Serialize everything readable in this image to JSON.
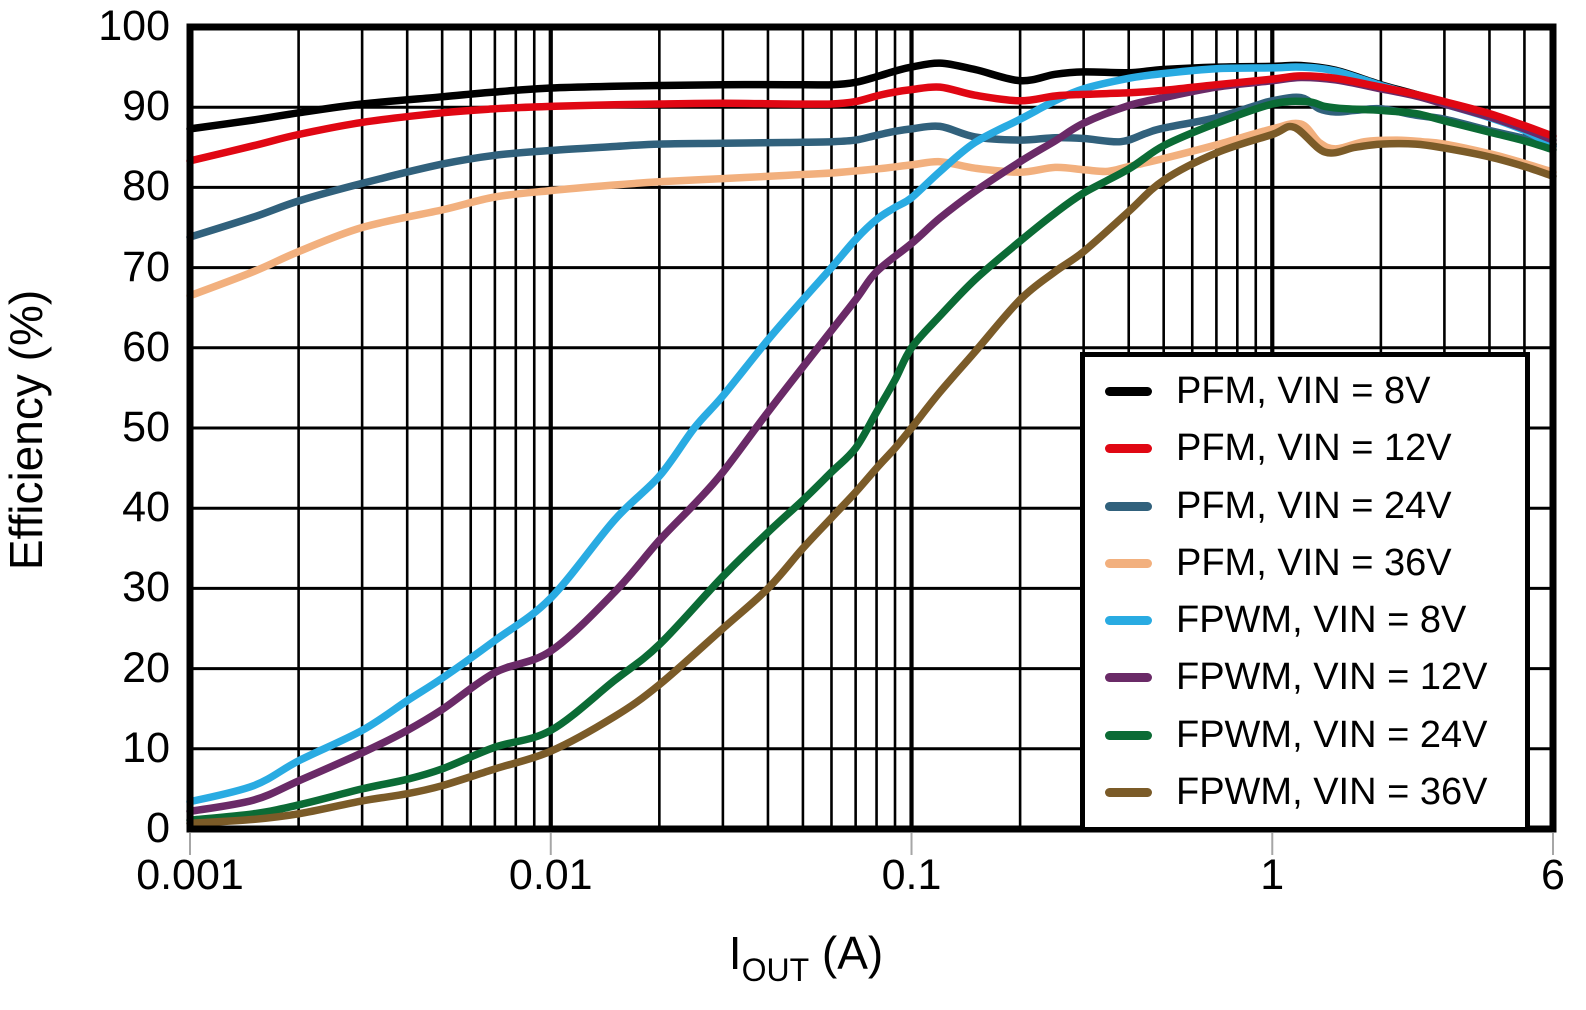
{
  "chart_data": {
    "type": "line",
    "title": "",
    "xlabel": {
      "base": "I",
      "sub": "OUT",
      "rest": " (A)"
    },
    "ylabel": "Efficiency (%)",
    "x_scale": "log",
    "xlim": [
      0.001,
      6
    ],
    "ylim": [
      0,
      100
    ],
    "grid": "on",
    "legend_position": "inside-bottom-right",
    "x_ticks": [
      {
        "value": 0.001,
        "label": "0.001"
      },
      {
        "value": 0.01,
        "label": "0.01"
      },
      {
        "value": 0.1,
        "label": "0.1"
      },
      {
        "value": 1,
        "label": "1"
      },
      {
        "value": 6,
        "label": "6"
      }
    ],
    "y_ticks": [
      {
        "value": 0,
        "label": "0"
      },
      {
        "value": 10,
        "label": "10"
      },
      {
        "value": 20,
        "label": "20"
      },
      {
        "value": 30,
        "label": "30"
      },
      {
        "value": 40,
        "label": "40"
      },
      {
        "value": 50,
        "label": "50"
      },
      {
        "value": 60,
        "label": "60"
      },
      {
        "value": 70,
        "label": "70"
      },
      {
        "value": 80,
        "label": "80"
      },
      {
        "value": 90,
        "label": "90"
      },
      {
        "value": 100,
        "label": "100"
      }
    ],
    "series": [
      {
        "name": "PFM, VIN = 8V",
        "color": "#000000",
        "points": [
          [
            0.001,
            87.3
          ],
          [
            0.0015,
            88.4
          ],
          [
            0.002,
            89.3
          ],
          [
            0.003,
            90.4
          ],
          [
            0.005,
            91.3
          ],
          [
            0.007,
            91.9
          ],
          [
            0.01,
            92.4
          ],
          [
            0.015,
            92.6
          ],
          [
            0.02,
            92.7
          ],
          [
            0.03,
            92.8
          ],
          [
            0.045,
            92.8
          ],
          [
            0.06,
            92.8
          ],
          [
            0.07,
            93.1
          ],
          [
            0.08,
            93.8
          ],
          [
            0.09,
            94.5
          ],
          [
            0.1,
            95.0
          ],
          [
            0.12,
            95.5
          ],
          [
            0.15,
            94.7
          ],
          [
            0.2,
            93.3
          ],
          [
            0.25,
            94.1
          ],
          [
            0.3,
            94.4
          ],
          [
            0.4,
            94.3
          ],
          [
            0.5,
            94.7
          ],
          [
            0.7,
            95.0
          ],
          [
            1,
            95.1
          ],
          [
            1.2,
            95.2
          ],
          [
            1.5,
            94.6
          ],
          [
            2,
            92.8
          ],
          [
            2.5,
            91.6
          ],
          [
            3,
            90.5
          ],
          [
            4,
            88.8
          ],
          [
            5,
            87.2
          ],
          [
            6,
            85.4
          ]
        ]
      },
      {
        "name": "PFM, VIN = 12V",
        "color": "#E00713",
        "points": [
          [
            0.001,
            83.3
          ],
          [
            0.0015,
            85.2
          ],
          [
            0.002,
            86.6
          ],
          [
            0.003,
            88.1
          ],
          [
            0.005,
            89.3
          ],
          [
            0.007,
            89.8
          ],
          [
            0.01,
            90.1
          ],
          [
            0.015,
            90.3
          ],
          [
            0.02,
            90.4
          ],
          [
            0.03,
            90.5
          ],
          [
            0.045,
            90.4
          ],
          [
            0.06,
            90.4
          ],
          [
            0.07,
            90.7
          ],
          [
            0.08,
            91.4
          ],
          [
            0.09,
            91.9
          ],
          [
            0.1,
            92.2
          ],
          [
            0.12,
            92.5
          ],
          [
            0.15,
            91.5
          ],
          [
            0.2,
            90.8
          ],
          [
            0.25,
            91.4
          ],
          [
            0.3,
            91.6
          ],
          [
            0.4,
            91.8
          ],
          [
            0.5,
            92.1
          ],
          [
            0.7,
            92.8
          ],
          [
            1,
            93.5
          ],
          [
            1.2,
            93.9
          ],
          [
            1.5,
            93.6
          ],
          [
            2,
            92.5
          ],
          [
            2.5,
            91.6
          ],
          [
            3,
            90.7
          ],
          [
            4,
            89.2
          ],
          [
            5,
            87.7
          ],
          [
            6,
            86.4
          ]
        ]
      },
      {
        "name": "PFM, VIN = 24V",
        "color": "#31617C",
        "points": [
          [
            0.001,
            73.8
          ],
          [
            0.0015,
            76.3
          ],
          [
            0.002,
            78.3
          ],
          [
            0.003,
            80.5
          ],
          [
            0.005,
            82.9
          ],
          [
            0.007,
            84.0
          ],
          [
            0.01,
            84.6
          ],
          [
            0.015,
            85.1
          ],
          [
            0.02,
            85.4
          ],
          [
            0.03,
            85.5
          ],
          [
            0.045,
            85.6
          ],
          [
            0.06,
            85.7
          ],
          [
            0.07,
            85.9
          ],
          [
            0.08,
            86.5
          ],
          [
            0.09,
            87.0
          ],
          [
            0.1,
            87.3
          ],
          [
            0.12,
            87.6
          ],
          [
            0.15,
            86.3
          ],
          [
            0.2,
            85.9
          ],
          [
            0.25,
            86.2
          ],
          [
            0.3,
            86.1
          ],
          [
            0.38,
            85.7
          ],
          [
            0.45,
            86.8
          ],
          [
            0.5,
            87.4
          ],
          [
            0.7,
            88.7
          ],
          [
            0.9,
            90.2
          ],
          [
            1,
            90.8
          ],
          [
            1.2,
            91.2
          ],
          [
            1.35,
            89.8
          ],
          [
            1.5,
            89.4
          ],
          [
            1.7,
            89.6
          ],
          [
            2,
            89.8
          ],
          [
            2.5,
            89.0
          ],
          [
            3,
            88.5
          ],
          [
            4,
            87.1
          ],
          [
            5,
            86.1
          ],
          [
            6,
            85.1
          ]
        ]
      },
      {
        "name": "PFM, VIN = 36V",
        "color": "#F2B07E",
        "points": [
          [
            0.001,
            66.5
          ],
          [
            0.0015,
            69.5
          ],
          [
            0.002,
            72.0
          ],
          [
            0.003,
            75.0
          ],
          [
            0.005,
            77.2
          ],
          [
            0.007,
            78.8
          ],
          [
            0.01,
            79.6
          ],
          [
            0.015,
            80.3
          ],
          [
            0.02,
            80.7
          ],
          [
            0.03,
            81.1
          ],
          [
            0.045,
            81.5
          ],
          [
            0.06,
            81.8
          ],
          [
            0.08,
            82.3
          ],
          [
            0.1,
            82.8
          ],
          [
            0.12,
            83.2
          ],
          [
            0.15,
            82.4
          ],
          [
            0.2,
            81.9
          ],
          [
            0.25,
            82.5
          ],
          [
            0.3,
            82.2
          ],
          [
            0.35,
            82.0
          ],
          [
            0.4,
            82.6
          ],
          [
            0.5,
            83.6
          ],
          [
            0.7,
            85.3
          ],
          [
            1,
            87.3
          ],
          [
            1.2,
            87.9
          ],
          [
            1.35,
            85.6
          ],
          [
            1.5,
            84.8
          ],
          [
            1.8,
            85.7
          ],
          [
            2.2,
            85.9
          ],
          [
            2.6,
            85.7
          ],
          [
            3,
            85.4
          ],
          [
            4,
            84.2
          ],
          [
            5,
            83.0
          ],
          [
            6,
            81.9
          ]
        ]
      },
      {
        "name": "FPWM, VIN = 8V",
        "color": "#29ABE2",
        "points": [
          [
            0.001,
            3.4
          ],
          [
            0.0015,
            5.4
          ],
          [
            0.002,
            8.5
          ],
          [
            0.003,
            12.3
          ],
          [
            0.004,
            16.0
          ],
          [
            0.005,
            18.8
          ],
          [
            0.007,
            23.5
          ],
          [
            0.01,
            28.8
          ],
          [
            0.015,
            38.5
          ],
          [
            0.02,
            44.0
          ],
          [
            0.025,
            50.0
          ],
          [
            0.03,
            54.0
          ],
          [
            0.04,
            61.0
          ],
          [
            0.05,
            66.0
          ],
          [
            0.06,
            70.0
          ],
          [
            0.07,
            73.5
          ],
          [
            0.08,
            76.0
          ],
          [
            0.09,
            77.5
          ],
          [
            0.1,
            78.7
          ],
          [
            0.12,
            82.0
          ],
          [
            0.15,
            85.6
          ],
          [
            0.2,
            88.5
          ],
          [
            0.25,
            90.8
          ],
          [
            0.3,
            92.3
          ],
          [
            0.4,
            93.6
          ],
          [
            0.5,
            94.2
          ],
          [
            0.7,
            94.8
          ],
          [
            1,
            94.9
          ],
          [
            1.2,
            95.0
          ],
          [
            1.5,
            94.5
          ],
          [
            2,
            92.7
          ],
          [
            2.5,
            91.5
          ],
          [
            3,
            90.4
          ],
          [
            4,
            88.7
          ],
          [
            5,
            87.1
          ],
          [
            6,
            85.2
          ]
        ]
      },
      {
        "name": "FPWM, VIN = 12V",
        "color": "#6A2A67",
        "points": [
          [
            0.001,
            2.2
          ],
          [
            0.0015,
            3.6
          ],
          [
            0.002,
            6.0
          ],
          [
            0.003,
            9.5
          ],
          [
            0.004,
            12.3
          ],
          [
            0.005,
            14.9
          ],
          [
            0.007,
            19.5
          ],
          [
            0.01,
            22.2
          ],
          [
            0.015,
            29.5
          ],
          [
            0.02,
            36.0
          ],
          [
            0.025,
            40.5
          ],
          [
            0.03,
            44.5
          ],
          [
            0.04,
            52.0
          ],
          [
            0.055,
            60.0
          ],
          [
            0.07,
            66.0
          ],
          [
            0.08,
            69.5
          ],
          [
            0.1,
            73.0
          ],
          [
            0.12,
            76.2
          ],
          [
            0.15,
            79.5
          ],
          [
            0.2,
            83.2
          ],
          [
            0.25,
            85.8
          ],
          [
            0.3,
            88.0
          ],
          [
            0.4,
            90.2
          ],
          [
            0.5,
            91.2
          ],
          [
            0.7,
            92.5
          ],
          [
            1,
            93.3
          ],
          [
            1.2,
            93.7
          ],
          [
            1.5,
            93.4
          ],
          [
            2,
            92.3
          ],
          [
            2.5,
            91.4
          ],
          [
            3,
            90.4
          ],
          [
            4,
            88.8
          ],
          [
            5,
            87.3
          ],
          [
            6,
            85.9
          ]
        ]
      },
      {
        "name": "FPWM, VIN = 24V",
        "color": "#0B6B35",
        "points": [
          [
            0.001,
            1.1
          ],
          [
            0.0015,
            1.9
          ],
          [
            0.002,
            3.0
          ],
          [
            0.003,
            5.0
          ],
          [
            0.004,
            6.2
          ],
          [
            0.005,
            7.5
          ],
          [
            0.007,
            10.2
          ],
          [
            0.01,
            12.3
          ],
          [
            0.015,
            18.5
          ],
          [
            0.02,
            23.0
          ],
          [
            0.03,
            31.5
          ],
          [
            0.04,
            37.0
          ],
          [
            0.05,
            41.0
          ],
          [
            0.06,
            44.5
          ],
          [
            0.07,
            47.5
          ],
          [
            0.08,
            52.0
          ],
          [
            0.09,
            56.0
          ],
          [
            0.1,
            60.0
          ],
          [
            0.12,
            64.0
          ],
          [
            0.15,
            68.5
          ],
          [
            0.2,
            73.3
          ],
          [
            0.25,
            76.8
          ],
          [
            0.3,
            79.3
          ],
          [
            0.4,
            82.3
          ],
          [
            0.5,
            85.2
          ],
          [
            0.7,
            88.0
          ],
          [
            1,
            90.4
          ],
          [
            1.25,
            90.7
          ],
          [
            1.4,
            90.1
          ],
          [
            1.6,
            89.8
          ],
          [
            2,
            89.6
          ],
          [
            2.5,
            89.2
          ],
          [
            3,
            88.3
          ],
          [
            4,
            86.9
          ],
          [
            5,
            85.8
          ],
          [
            6,
            84.7
          ]
        ]
      },
      {
        "name": "FPWM, VIN = 36V",
        "color": "#7B5B28",
        "points": [
          [
            0.001,
            0.7
          ],
          [
            0.0015,
            1.2
          ],
          [
            0.002,
            1.9
          ],
          [
            0.003,
            3.5
          ],
          [
            0.004,
            4.4
          ],
          [
            0.005,
            5.4
          ],
          [
            0.007,
            7.5
          ],
          [
            0.01,
            9.7
          ],
          [
            0.015,
            14.0
          ],
          [
            0.02,
            18.0
          ],
          [
            0.03,
            25.0
          ],
          [
            0.04,
            30.0
          ],
          [
            0.05,
            35.0
          ],
          [
            0.06,
            38.8
          ],
          [
            0.07,
            42.0
          ],
          [
            0.08,
            45.0
          ],
          [
            0.09,
            47.5
          ],
          [
            0.1,
            50.0
          ],
          [
            0.12,
            54.5
          ],
          [
            0.15,
            59.5
          ],
          [
            0.2,
            66.0
          ],
          [
            0.25,
            69.5
          ],
          [
            0.3,
            72.0
          ],
          [
            0.4,
            77.0
          ],
          [
            0.5,
            80.9
          ],
          [
            0.7,
            84.3
          ],
          [
            1,
            86.6
          ],
          [
            1.15,
            87.5
          ],
          [
            1.4,
            84.4
          ],
          [
            1.7,
            85.0
          ],
          [
            2,
            85.4
          ],
          [
            2.5,
            85.4
          ],
          [
            3,
            84.9
          ],
          [
            4,
            83.8
          ],
          [
            5,
            82.6
          ],
          [
            6,
            81.4
          ]
        ]
      }
    ]
  }
}
